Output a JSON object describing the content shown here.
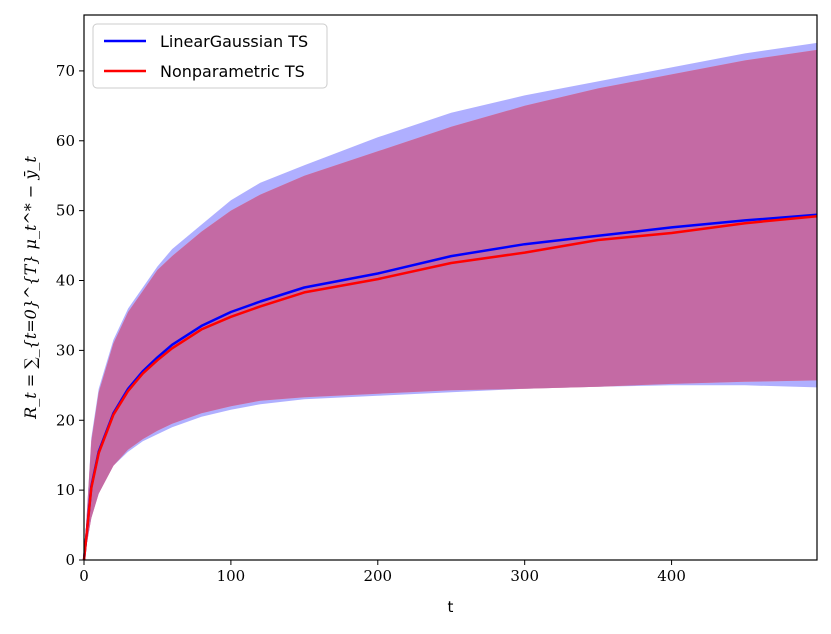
{
  "chart_data": {
    "type": "line",
    "xlabel": "t",
    "ylabel": "R_t = ∑_{t=0}^{T} μ_t^* − ȳ_t",
    "xlim": [
      0,
      499
    ],
    "ylim": [
      0,
      78
    ],
    "xticks": [
      0,
      100,
      200,
      300,
      400
    ],
    "yticks": [
      0,
      10,
      20,
      30,
      40,
      50,
      60,
      70
    ],
    "grid": false,
    "legend_position": "top-left",
    "x": [
      0,
      5,
      10,
      20,
      30,
      40,
      50,
      60,
      80,
      100,
      120,
      150,
      200,
      250,
      300,
      350,
      400,
      450,
      499
    ],
    "series": [
      {
        "name": "LinearGaussian TS",
        "color": "#0000ff",
        "band_color": "#a6a6ff",
        "mean": [
          0,
          10.5,
          15.5,
          21.0,
          24.5,
          27.0,
          29.0,
          30.8,
          33.5,
          35.5,
          37.0,
          39.0,
          41.0,
          43.5,
          45.2,
          46.4,
          47.6,
          48.6,
          49.4
        ],
        "upper": [
          0,
          17.5,
          24.5,
          31.5,
          36.0,
          39.0,
          42.0,
          44.5,
          48.0,
          51.5,
          54.0,
          56.5,
          60.5,
          64.0,
          66.5,
          68.5,
          70.5,
          72.5,
          74.0
        ],
        "lower": [
          0,
          6.0,
          9.5,
          13.5,
          15.5,
          17.0,
          18.0,
          19.0,
          20.5,
          21.5,
          22.3,
          23.0,
          23.5,
          24.0,
          24.5,
          24.8,
          25.0,
          25.0,
          24.7
        ]
      },
      {
        "name": "Nonparametric TS",
        "color": "#ff0000",
        "band_color": "#ffa6a6",
        "mean": [
          0,
          10.3,
          15.3,
          20.8,
          24.2,
          26.7,
          28.6,
          30.3,
          33.0,
          34.8,
          36.3,
          38.3,
          40.2,
          42.5,
          44.0,
          45.8,
          46.8,
          48.2,
          49.2
        ],
        "upper": [
          0,
          17.0,
          24.0,
          31.0,
          35.5,
          38.5,
          41.5,
          43.5,
          47.0,
          50.0,
          52.3,
          55.0,
          58.5,
          62.0,
          65.0,
          67.5,
          69.5,
          71.5,
          73.0
        ],
        "lower": [
          0,
          6.0,
          9.5,
          13.5,
          15.8,
          17.3,
          18.5,
          19.5,
          21.0,
          22.0,
          22.8,
          23.3,
          23.8,
          24.3,
          24.5,
          24.8,
          25.2,
          25.5,
          25.7
        ]
      }
    ]
  }
}
